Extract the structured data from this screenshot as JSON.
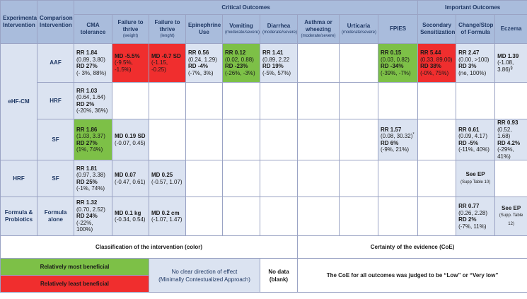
{
  "headers": {
    "experimental": "Experimental Intervention",
    "comparison": "Comparison Intervention",
    "critical": "Critical Outcomes",
    "important": "Important Outcomes",
    "cols": [
      {
        "main": "CMA tolerance",
        "sub": ""
      },
      {
        "main": "Failure to thrive",
        "sub": "(weight)"
      },
      {
        "main": "Failure to thrive",
        "sub": "(lenght)"
      },
      {
        "main": "Epinephrine Use",
        "sub": ""
      },
      {
        "main": "Vomiting",
        "sub": "(moderate/severe)"
      },
      {
        "main": "Diarrhea",
        "sub": "(moderate/severe)"
      },
      {
        "main": "Asthma or wheezing",
        "sub": "(moderate/severe)"
      },
      {
        "main": "Urticaria",
        "sub": "(moderate/severe)"
      },
      {
        "main": "FPIES",
        "sub": ""
      },
      {
        "main": "Secondary Sensitization",
        "sub": ""
      },
      {
        "main": "Change/Stop of Formula",
        "sub": ""
      },
      {
        "main": "Eczema",
        "sub": ""
      }
    ]
  },
  "groups": {
    "ehf": "eHF-CM",
    "hrf": "HRF",
    "formula": "Formula & Probiotics"
  },
  "comparisons": {
    "aaf": "AAF",
    "hrf": "HRF",
    "sf1": "SF",
    "sf2": "SF",
    "alone": "Formula alone"
  },
  "rows": {
    "aaf": {
      "cma": {
        "l1": "RR 1.84",
        "l2": "(0.89, 3.80)",
        "l3": "RD 27%",
        "l4": "(- 3%, 88%)"
      },
      "ftw": {
        "l1": "MD -5.5%",
        "l2": "(-9.5%, -1.5%)"
      },
      "ftl": {
        "l1": "MD -0.7 SD",
        "l2": "(-1.15, -0.25)"
      },
      "epi": {
        "l1": "RR 0.56",
        "l2": "(0.24, 1.29)",
        "l3": "RD -4%",
        "l4": "(-7%, 3%)"
      },
      "vom": {
        "l1": "RR 0.12",
        "l2": "(0.02, 0.88)",
        "l3": "RD -23%",
        "l4": "(-26%, -3%)"
      },
      "dia": {
        "l1": "RR 1.41",
        "l2": "(0.89, 2.22",
        "l3": "RD 19%",
        "l4": "(-5%, 57%)"
      },
      "fpies": {
        "l1": "RR 0.15",
        "l2": "(0.03, 0.82)",
        "l3": "RD -34%",
        "l4": "(-39%, -7%)"
      },
      "sec": {
        "l1": "RR 5.44",
        "l2": "(0.33, 89.00)",
        "l3": "RD 38%",
        "l4": "(-0%, 75%)"
      },
      "chg": {
        "l1": "RR 2.47",
        "l2": "(0.00, >100)",
        "l3": "RD 3%",
        "l4": "(ne, 100%)"
      },
      "ecz": {
        "l1": "MD 1.39",
        "l2": "(-1.08, 3.86)",
        "sup": "§"
      }
    },
    "hrf": {
      "cma": {
        "l1": "RR 1.03",
        "l2": "(0.64, 1.64)",
        "l3": "RD 2%",
        "l4": "(-20%, 36%)"
      }
    },
    "sf": {
      "cma": {
        "l1": "RR 1.86",
        "l2": "(1.03, 3.37)",
        "l3": "RD 27%",
        "l4": "(1%, 74%)"
      },
      "ftw": {
        "l1": "MD 0.19 SD",
        "l2": "(-0.07, 0.45)"
      },
      "fpies": {
        "l1": "RR 1.57",
        "l2": "(0.08, 30.32)",
        "sup": "*",
        "l3": "RD 6%",
        "l4": "(-9%, 21%)"
      },
      "chg": {
        "l1": "RR 0.61",
        "l2": "(0.09, 4.17)",
        "l3": "RD -5%",
        "l4": "(-11%, 40%)"
      },
      "ecz": {
        "l1": "RR 0.93",
        "l2": "(0.52, 1.68)",
        "l3": "RD 4.2%",
        "l4": "(-29%, 41%)"
      }
    },
    "hrfsf": {
      "cma": {
        "l1": "RR 1.81",
        "l2": "(0.97, 3.38)",
        "l3": "RD 25%",
        "l4": "(-1%, 74%)"
      },
      "ftw": {
        "l1": "MD 0.07",
        "l2": "(-0.47, 0.61)"
      },
      "ftl": {
        "l1": "MD 0.25",
        "l2": "(-0.57, 1.07)"
      },
      "chg": {
        "see": "See EP",
        "ref": "(Supp Table 10)"
      }
    },
    "prob": {
      "cma": {
        "l1": "RR 1.32",
        "l2": "(0.70, 2.52)",
        "l3": "RD 24%",
        "l4": "(-22%, 100%)"
      },
      "ftw": {
        "l1": "MD 0.1 kg",
        "l2": "(-0.34, 0.54)"
      },
      "ftl": {
        "l1": "MD 0.2 cm",
        "l2": "(-1.07, 1.47)"
      },
      "chg": {
        "l1": "RR 0.77",
        "l2": "(0.26, 2.28)",
        "l3": "RD 2%",
        "l4": "(-7%, 11%)"
      },
      "ecz": {
        "see": "See EP",
        "ref": "(Supp. Table 12)"
      }
    }
  },
  "legend": {
    "classification": "Classification of the intervention (color)",
    "certainty": "Certainty of the evidence (CoE)",
    "most": "Relatively most beneficial",
    "least": "Relatively least beneficial",
    "noclear": "No clear direction of effect",
    "noclear_sub": "(Minimally Contextualized Approach)",
    "nodata": "No data",
    "nodata_sub": "(blank)",
    "coe_text": "The CoE for all outcomes was judged to be “Low” or “Very low”"
  },
  "colors": {
    "header": "#a9bcdc",
    "neutral": "#dbe3f1",
    "most_beneficial": "#7dc047",
    "least_beneficial": "#f02e2e"
  }
}
